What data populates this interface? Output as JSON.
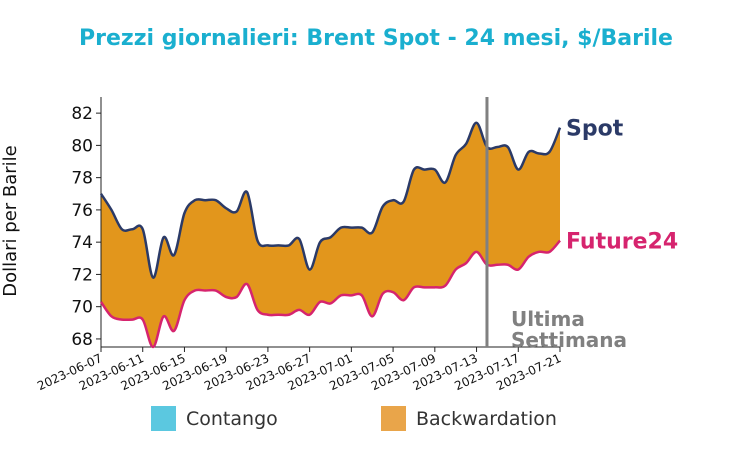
{
  "chart_data": {
    "type": "area",
    "title": "Prezzi giornalieri: Brent Spot - 24 mesi, $/Barile",
    "ylabel": "Dollari per Barile",
    "xlabel": "",
    "ylim": [
      67.5,
      83.0
    ],
    "yticks": [
      68,
      70,
      72,
      74,
      76,
      78,
      80,
      82
    ],
    "xlim": [
      "2023-06-07",
      "2023-07-21"
    ],
    "xticks": [
      "2023-06-07",
      "2023-06-11",
      "2023-06-15",
      "2023-06-19",
      "2023-06-23",
      "2023-06-27",
      "2023-07-01",
      "2023-07-05",
      "2023-07-09",
      "2023-07-13",
      "2023-07-17",
      "2023-07-21"
    ],
    "x": [
      "2023-06-07",
      "2023-06-08",
      "2023-06-09",
      "2023-06-10",
      "2023-06-11",
      "2023-06-12",
      "2023-06-13",
      "2023-06-14",
      "2023-06-15",
      "2023-06-16",
      "2023-06-17",
      "2023-06-18",
      "2023-06-19",
      "2023-06-20",
      "2023-06-21",
      "2023-06-22",
      "2023-06-23",
      "2023-06-24",
      "2023-06-25",
      "2023-06-26",
      "2023-06-27",
      "2023-06-28",
      "2023-06-29",
      "2023-06-30",
      "2023-07-01",
      "2023-07-02",
      "2023-07-03",
      "2023-07-04",
      "2023-07-05",
      "2023-07-06",
      "2023-07-07",
      "2023-07-08",
      "2023-07-09",
      "2023-07-10",
      "2023-07-11",
      "2023-07-12",
      "2023-07-13",
      "2023-07-14",
      "2023-07-15",
      "2023-07-16",
      "2023-07-17",
      "2023-07-18",
      "2023-07-19",
      "2023-07-20",
      "2023-07-21"
    ],
    "series": [
      {
        "name": "Spot",
        "color": "#2b3a67",
        "values": [
          77.0,
          76.0,
          74.8,
          74.8,
          74.8,
          71.8,
          74.3,
          73.2,
          75.8,
          76.6,
          76.6,
          76.6,
          76.1,
          75.9,
          77.1,
          74.1,
          73.8,
          73.8,
          73.8,
          74.2,
          72.3,
          74.0,
          74.3,
          74.9,
          74.9,
          74.9,
          74.6,
          76.2,
          76.6,
          76.5,
          78.5,
          78.5,
          78.5,
          77.7,
          79.4,
          80.1,
          81.4,
          79.9,
          79.9,
          79.9,
          78.5,
          79.6,
          79.5,
          79.6,
          81.1
        ]
      },
      {
        "name": "Future24",
        "color": "#d6246e",
        "values": [
          70.3,
          69.4,
          69.2,
          69.2,
          69.2,
          67.5,
          69.4,
          68.5,
          70.4,
          71.0,
          71.0,
          71.0,
          70.6,
          70.6,
          71.4,
          69.8,
          69.5,
          69.5,
          69.5,
          69.8,
          69.5,
          70.3,
          70.2,
          70.7,
          70.7,
          70.7,
          69.4,
          70.8,
          70.9,
          70.4,
          71.2,
          71.2,
          71.2,
          71.3,
          72.3,
          72.7,
          73.4,
          72.6,
          72.6,
          72.6,
          72.3,
          73.1,
          73.4,
          73.4,
          74.1
        ]
      }
    ],
    "vline": {
      "x": "2023-07-14",
      "color": "#808080"
    },
    "annotation": "Ultima Settimana",
    "annotation_lines": [
      "Ultima",
      "Settimana"
    ],
    "legend": [
      {
        "label": "Contango",
        "color": "#5bc8e0"
      },
      {
        "label": "Backwardation",
        "color": "#e9a54a"
      }
    ],
    "legend_placement": "bottom-center",
    "fill_color": "#e2961c",
    "title_color": "#1aafcf",
    "grid": false
  }
}
